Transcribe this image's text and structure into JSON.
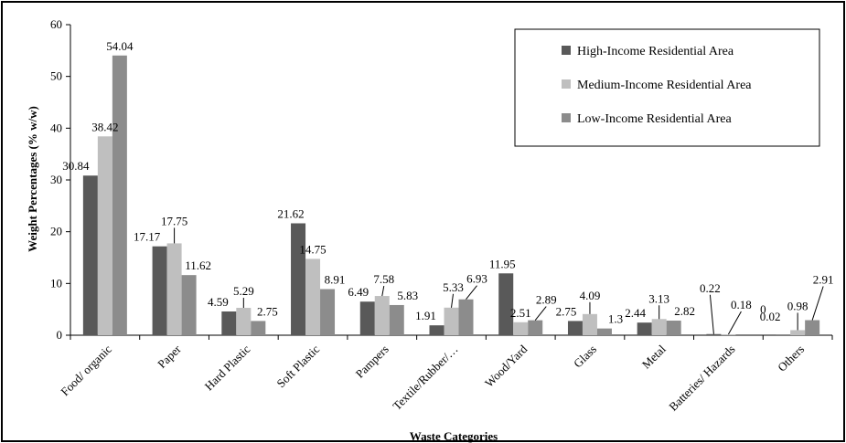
{
  "chart_data": {
    "type": "bar",
    "title": "",
    "xlabel": "Waste Categories",
    "ylabel": "Weight Percentages (% w/w)",
    "ylim": [
      0,
      60
    ],
    "yticks": [
      0,
      10,
      20,
      30,
      40,
      50,
      60
    ],
    "grid": false,
    "legend_position": "top-right",
    "categories": [
      "Food/ organic",
      "Paper",
      "Hard Plastic",
      "Soft Plastic",
      "Pampers",
      "Textile/Rubber/…",
      "Wood/Yard",
      "Glass",
      "Metal",
      "Batteries/ Hazards",
      "Others"
    ],
    "series": [
      {
        "name": "High-Income Residential Area",
        "color": "#595959",
        "values": [
          30.84,
          17.17,
          4.59,
          21.62,
          6.49,
          1.91,
          11.95,
          2.75,
          2.44,
          0.22,
          0.02
        ],
        "labels": [
          "30.84",
          "17.17",
          "4.59",
          "21.62",
          "6.49",
          "1.91",
          "11.95",
          "2.75",
          "2.44",
          "0.22",
          "0.02"
        ]
      },
      {
        "name": "Medium-Income Residential Area",
        "color": "#bfbfbf",
        "values": [
          38.42,
          17.75,
          5.29,
          14.75,
          7.58,
          5.33,
          2.51,
          4.09,
          3.13,
          0.18,
          0.98
        ],
        "labels": [
          "38.42",
          "17.75",
          "5.29",
          "14.75",
          "7.58",
          "5.33",
          "2.51",
          "4.09",
          "3.13",
          "0.18",
          "0.98"
        ]
      },
      {
        "name": "Low-Income Residential Area",
        "color": "#8c8c8c",
        "values": [
          54.04,
          11.62,
          2.75,
          8.91,
          5.83,
          6.93,
          2.89,
          1.3,
          2.82,
          0,
          2.91
        ],
        "labels": [
          "54.04",
          "11.62",
          "2.75",
          "8.91",
          "5.83",
          "6.93",
          "2.89",
          "1.3",
          "2.82",
          "0",
          "2.91"
        ]
      }
    ]
  }
}
